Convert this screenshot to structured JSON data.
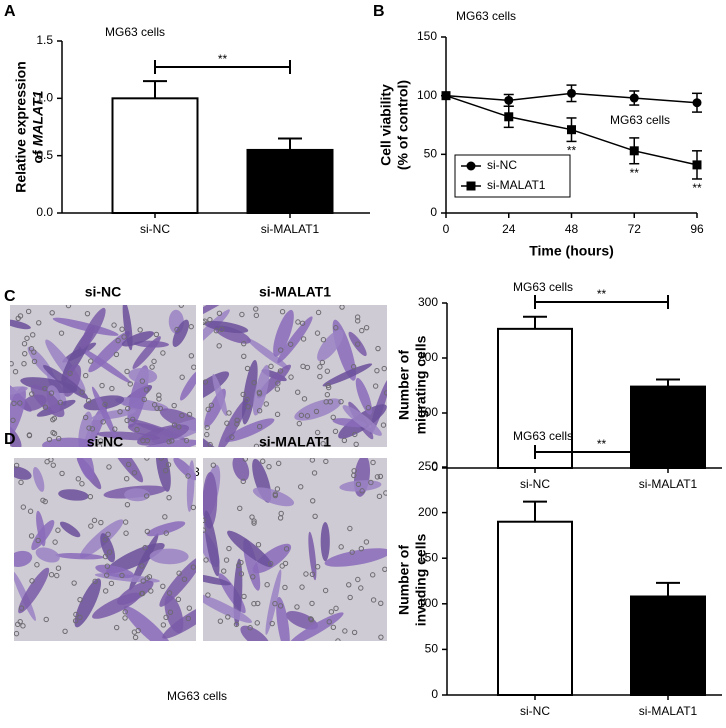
{
  "chart_data": [
    {
      "type": "bar",
      "panel": "A",
      "annotation": "MG63 cells",
      "ylabel": [
        "Relative expression",
        "of",
        "MALAT1"
      ],
      "categories": [
        "si-NC",
        "si-MALAT1"
      ],
      "values": [
        1.0,
        0.55
      ],
      "errors": [
        0.15,
        0.1
      ],
      "colors": [
        "#ffffff",
        "#000000"
      ],
      "significance": "**",
      "ylim": [
        0,
        1.5
      ],
      "yticks": [
        {
          "value": 0,
          "label": "0.0"
        },
        {
          "value": 0.5,
          "label": "0.5"
        },
        {
          "value": 1,
          "label": "1.0"
        },
        {
          "value": 1.5,
          "label": "1.5"
        }
      ]
    },
    {
      "type": "line",
      "panel": "B",
      "annotations": [
        "MG63 cells",
        "MG63 cells"
      ],
      "xlabel": "Time (hours)",
      "ylabel": [
        "Cell viability",
        "(% of control)"
      ],
      "x": [
        0,
        24,
        48,
        72,
        96
      ],
      "series": [
        {
          "name": "si-NC",
          "color": "#000000",
          "marker": "circle",
          "values": [
            100,
            96,
            102,
            98,
            94
          ],
          "errors": [
            0,
            5,
            7,
            6,
            8
          ]
        },
        {
          "name": "si-MALAT1",
          "color": "#000000",
          "marker": "square",
          "values": [
            100,
            82,
            71,
            53,
            41
          ],
          "errors": [
            0,
            9,
            10,
            11,
            12
          ],
          "labels": [
            null,
            null,
            "**",
            "**",
            "**"
          ]
        }
      ],
      "xlim": [
        0,
        96
      ],
      "xticks": [
        0,
        24,
        48,
        72,
        96
      ],
      "ylim": [
        0,
        150
      ],
      "yticks": [
        0,
        50,
        100,
        150
      ]
    },
    {
      "type": "bar",
      "panel": null,
      "annotation": "MG63 cells",
      "ylabel": [
        "Number of",
        "migrating cells"
      ],
      "categories": [
        "si-NC",
        "si-MALAT1"
      ],
      "values": [
        253,
        148
      ],
      "errors": [
        22,
        13
      ],
      "colors": [
        "#ffffff",
        "#000000"
      ],
      "significance": "**",
      "ylim": [
        0,
        300
      ],
      "yticks": [
        0,
        100,
        200,
        300
      ]
    },
    {
      "type": "bar",
      "panel": null,
      "annotation": "MG63 cells",
      "ylabel": [
        "Number of",
        "invading cells"
      ],
      "categories": [
        "si-NC",
        "si-MALAT1"
      ],
      "values": [
        190,
        108
      ],
      "errors": [
        22,
        15
      ],
      "colors": [
        "#ffffff",
        "#000000"
      ],
      "significance": "**",
      "ylim": [
        0,
        250
      ],
      "yticks": [
        0,
        50,
        100,
        150,
        200,
        250
      ]
    }
  ],
  "images": [
    {
      "panel": "C",
      "labels": [
        "si-NC",
        "si-MALAT1"
      ],
      "caption": "MG63 cells"
    },
    {
      "panel": "D",
      "labels": [
        "si-NC",
        "si-MALAT1"
      ],
      "caption": "MG63 cells"
    }
  ]
}
